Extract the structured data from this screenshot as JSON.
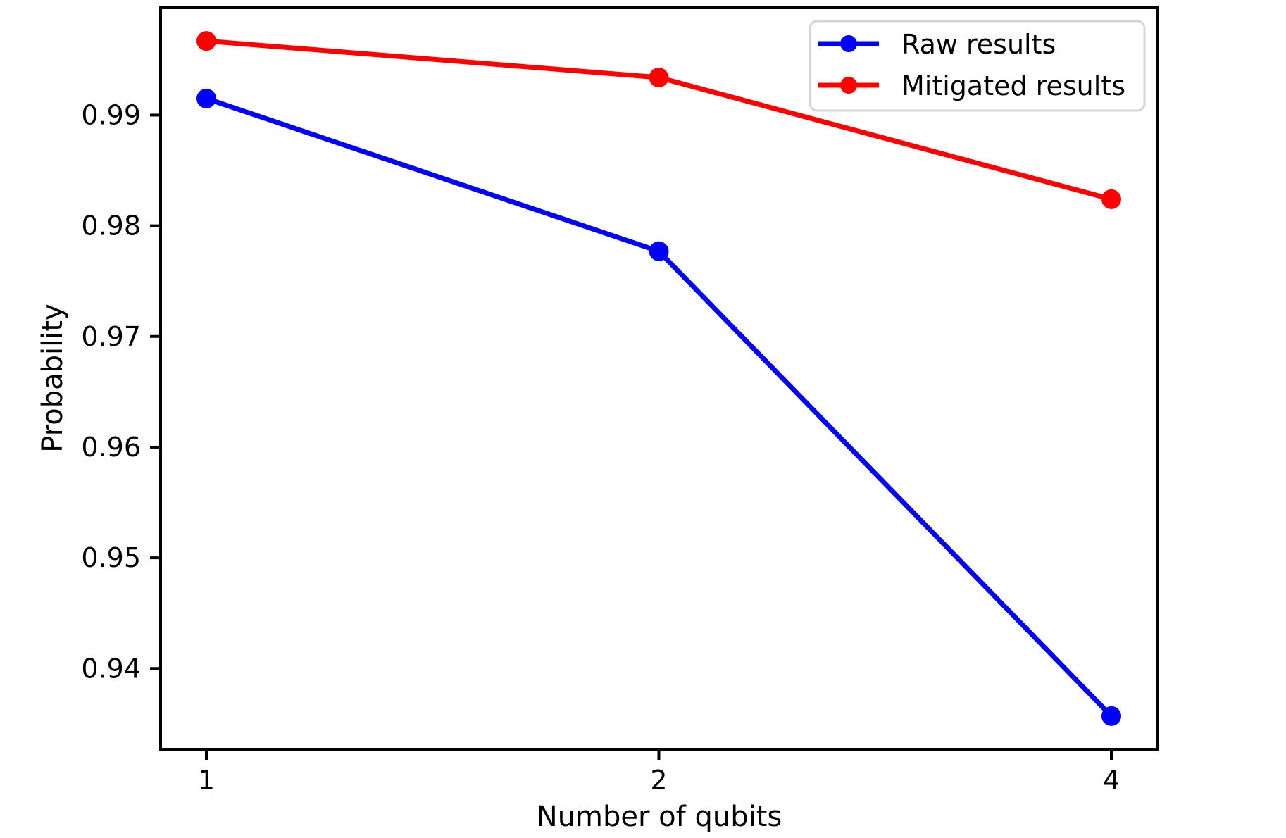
{
  "chart_data": {
    "type": "line",
    "title": "",
    "xlabel": "Number of qubits",
    "ylabel": "Probability",
    "x": [
      1,
      2,
      4
    ],
    "x_tick_labels": [
      "1",
      "2",
      "4"
    ],
    "series": [
      {
        "name": "Raw results",
        "color": "#0000ff",
        "marker": "circle",
        "values": [
          0.9915,
          0.9777,
          0.9357
        ]
      },
      {
        "name": "Mitigated results",
        "color": "#ff0000",
        "marker": "circle",
        "values": [
          0.9967,
          0.9934,
          0.9824
        ]
      }
    ],
    "yticks": [
      0.94,
      0.95,
      0.96,
      0.97,
      0.98,
      0.99
    ],
    "ytick_labels": [
      "0.94",
      "0.95",
      "0.96",
      "0.97",
      "0.98",
      "0.99"
    ],
    "ylim": [
      0.9327,
      0.9997
    ],
    "grid": false,
    "legend_position": "upper right",
    "background_color": "#ffffff",
    "axis_color": "#000000"
  }
}
